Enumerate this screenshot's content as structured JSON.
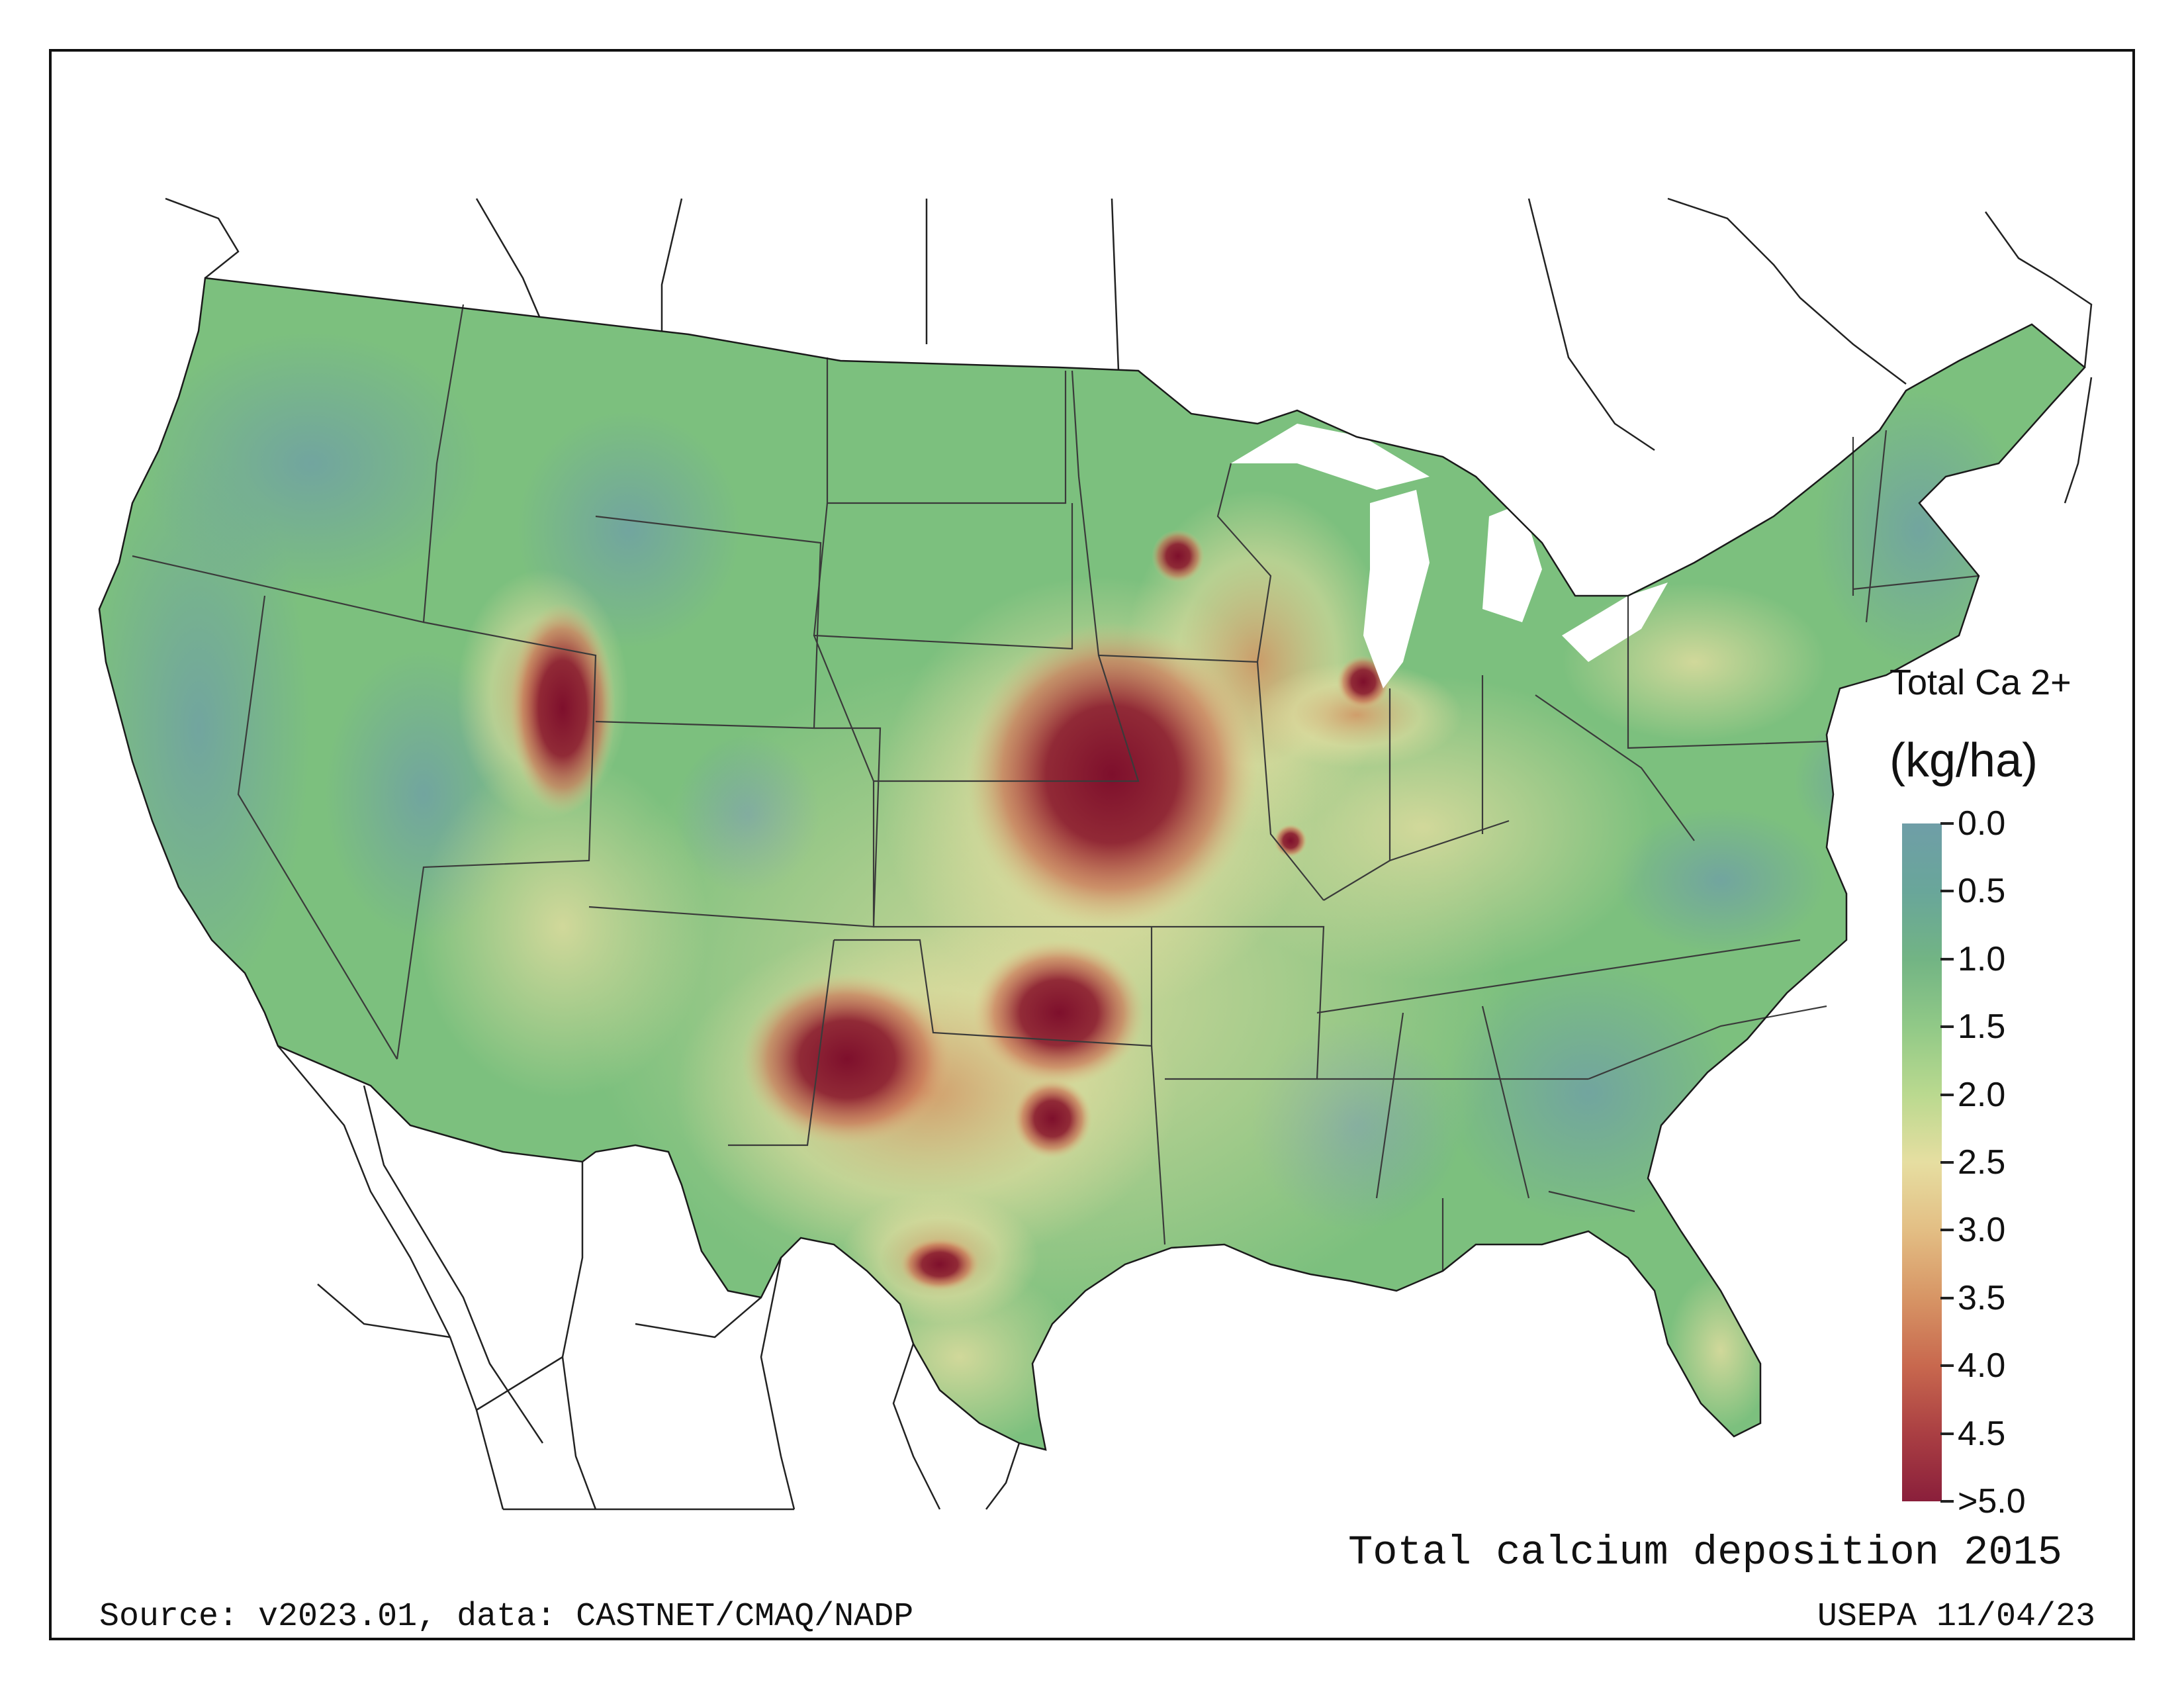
{
  "map": {
    "title": "Total calcium deposition 2015",
    "source_note": "Source: v2023.01, data: CASTNET/CMAQ/NADP",
    "stamp": "USEPA 11/04/23",
    "legend": {
      "title_line1": "Total Ca 2+",
      "title_line2": "(kg/ha)",
      "ticks": [
        "0.0",
        "0.5",
        "1.0",
        "1.5",
        "2.0",
        "2.5",
        "3.0",
        "3.5",
        "4.0",
        "4.5",
        ">5.0"
      ],
      "colors": [
        "#6f9ea7",
        "#69a69a",
        "#72b484",
        "#91c987",
        "#bad98f",
        "#e6dea1",
        "#e3be84",
        "#d79565",
        "#c8684e",
        "#aa3f43",
        "#8a1f3b"
      ]
    },
    "hotspot_color": "#7e0f2c",
    "base_color": "#7cc07e"
  }
}
